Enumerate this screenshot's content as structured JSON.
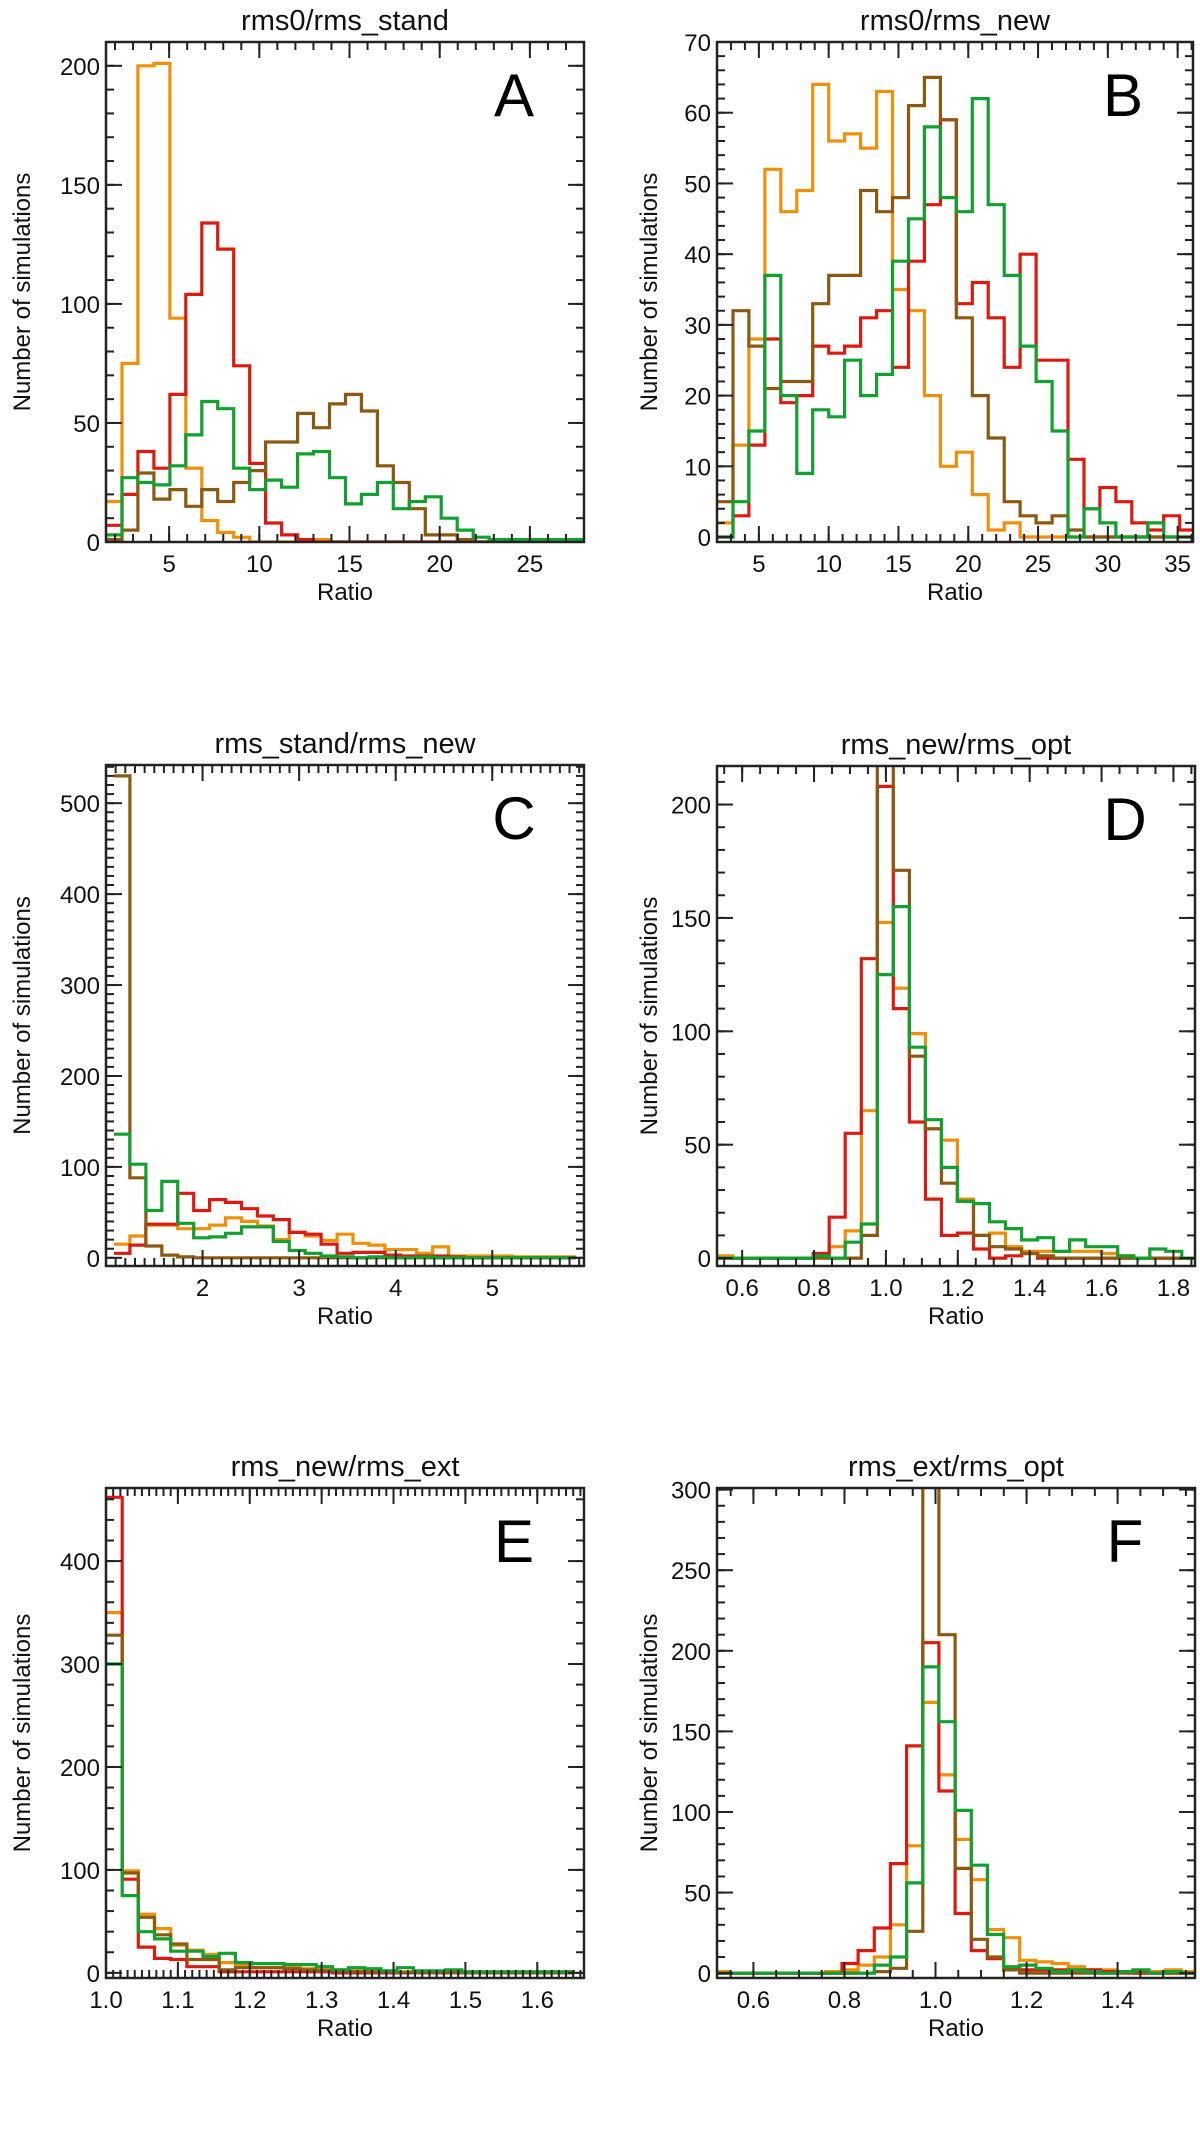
{
  "figure": {
    "series_colors": {
      "orange": "#F0900A",
      "red": "#DD1A10",
      "green": "#12A030",
      "brown": "#8B5A10"
    }
  },
  "chart_data": [
    {
      "id": "A",
      "type": "histogram",
      "title": "rms0/rms_stand",
      "panel_label": "A",
      "xlabel": "Ratio",
      "ylabel": "Number of simulations",
      "xlim": [
        1.5,
        28
      ],
      "ylim": [
        0,
        210
      ],
      "xticks": [
        5,
        10,
        15,
        20,
        25
      ],
      "xtick_labels": [
        "5",
        "10",
        "15",
        "20",
        "25"
      ],
      "xminor": 1,
      "yticks": [
        0,
        50,
        100,
        150,
        200
      ],
      "ytick_labels": [
        "0",
        "50",
        "100",
        "150",
        "200"
      ],
      "yminor": 10,
      "bin_start": 1.5,
      "bin_width": 0.885,
      "series": [
        {
          "name": "orange",
          "values": [
            17,
            75,
            200,
            201,
            94,
            31,
            9,
            4,
            2,
            0,
            0,
            0,
            0,
            1,
            0,
            0,
            0,
            0,
            0,
            0,
            0,
            0,
            0,
            0,
            0,
            0,
            0,
            0,
            0,
            0
          ]
        },
        {
          "name": "red",
          "values": [
            7,
            20,
            38,
            31,
            62,
            104,
            134,
            123,
            74,
            33,
            8,
            3,
            1,
            0,
            0,
            0,
            0,
            0,
            0,
            0,
            0,
            0,
            0,
            0,
            0,
            0,
            0,
            0,
            0,
            0
          ]
        },
        {
          "name": "brown",
          "values": [
            1,
            5,
            29,
            18,
            22,
            15,
            22,
            17,
            25,
            30,
            42,
            42,
            54,
            48,
            58,
            62,
            55,
            32,
            25,
            14,
            3,
            3,
            1,
            0,
            0,
            0,
            0,
            0,
            0,
            0
          ]
        },
        {
          "name": "green",
          "values": [
            3,
            27,
            25,
            24,
            32,
            45,
            59,
            56,
            31,
            22,
            26,
            23,
            37,
            38,
            27,
            16,
            20,
            25,
            14,
            17,
            19,
            10,
            5,
            2,
            1,
            1,
            1,
            1,
            1,
            1
          ]
        }
      ]
    },
    {
      "id": "B",
      "type": "histogram",
      "title": "rms0/rms_new",
      "panel_label": "B",
      "xlabel": "Ratio",
      "ylabel": "Number of simulations",
      "xlim": [
        2,
        36.1
      ],
      "ylim": [
        -0.7,
        70
      ],
      "xticks": [
        5,
        10,
        15,
        20,
        25,
        30,
        35
      ],
      "xtick_labels": [
        "5",
        "10",
        "15",
        "20",
        "25",
        "30",
        "35"
      ],
      "xminor": 1,
      "yticks": [
        0,
        10,
        20,
        30,
        40,
        50,
        60,
        70
      ],
      "ytick_labels": [
        "0",
        "10",
        "20",
        "30",
        "40",
        "50",
        "60",
        "70"
      ],
      "yminor": 2,
      "bin_start": 2.0,
      "bin_width": 1.143,
      "series": [
        {
          "name": "orange",
          "values": [
            2,
            13,
            28,
            52,
            46,
            49,
            64,
            56,
            57,
            55,
            63,
            35,
            32,
            20,
            10,
            12,
            6,
            1,
            2,
            0,
            0,
            0,
            0,
            0,
            0,
            0,
            0,
            0,
            0,
            0
          ]
        },
        {
          "name": "red",
          "values": [
            0,
            3,
            13,
            28,
            19,
            20,
            27,
            26,
            27,
            31,
            32,
            24,
            39,
            47,
            59,
            33,
            36,
            31,
            24,
            40,
            25,
            25,
            11,
            4,
            7,
            5,
            2,
            1,
            3,
            1
          ]
        },
        {
          "name": "brown",
          "values": [
            5,
            32,
            27,
            21,
            22,
            22,
            33,
            37,
            37,
            49,
            46,
            48,
            61,
            65,
            59,
            31,
            20,
            14,
            5,
            3,
            2,
            3,
            1,
            0,
            0,
            0,
            0,
            0,
            0,
            0
          ]
        },
        {
          "name": "green",
          "values": [
            0,
            5,
            15,
            37,
            20,
            9,
            18,
            17,
            25,
            20,
            23,
            39,
            45,
            58,
            48,
            46,
            62,
            47,
            37,
            27,
            22,
            15,
            0,
            4,
            2,
            0,
            0,
            2,
            0,
            0
          ]
        }
      ]
    },
    {
      "id": "C",
      "type": "histogram",
      "title": "rms_stand/rms_new",
      "panel_label": "C",
      "xlabel": "Ratio",
      "ylabel": "Number of simulations",
      "xlim": [
        1.0,
        5.95
      ],
      "ylim": [
        -9,
        542
      ],
      "xticks": [
        2,
        3,
        4,
        5
      ],
      "xtick_labels": [
        "2",
        "3",
        "4",
        "5"
      ],
      "xminor": 0.1,
      "yticks": [
        0,
        100,
        200,
        300,
        400,
        500
      ],
      "ytick_labels": [
        "0",
        "100",
        "200",
        "300",
        "400",
        "500"
      ],
      "yminor": 10,
      "bin_start": 1.083,
      "bin_width": 0.165,
      "series": [
        {
          "name": "orange",
          "values": [
            15,
            24,
            36,
            36,
            32,
            32,
            36,
            44,
            40,
            35,
            20,
            28,
            24,
            19,
            26,
            16,
            14,
            9,
            9,
            5,
            12,
            2,
            2,
            2,
            2,
            1,
            1,
            1,
            1
          ]
        },
        {
          "name": "red",
          "values": [
            5,
            14,
            37,
            37,
            71,
            52,
            64,
            61,
            54,
            46,
            42,
            28,
            26,
            15,
            5,
            6,
            6,
            3,
            2,
            2,
            2,
            1,
            0,
            0,
            0,
            0,
            0,
            0,
            0
          ]
        },
        {
          "name": "brown",
          "values": [
            530,
            88,
            13,
            3,
            1,
            0,
            0,
            0,
            0,
            0,
            0,
            0,
            0,
            0,
            0,
            0,
            0,
            0,
            0,
            0,
            0,
            0,
            0,
            0,
            0,
            0,
            0,
            0,
            0
          ]
        },
        {
          "name": "green",
          "values": [
            136,
            103,
            52,
            84,
            38,
            22,
            23,
            27,
            34,
            34,
            18,
            8,
            5,
            2,
            1,
            0,
            1,
            0,
            0,
            1,
            0,
            0,
            0,
            0,
            0,
            0,
            0,
            0,
            0
          ]
        }
      ]
    },
    {
      "id": "D",
      "type": "histogram",
      "title": "rms_new/rms_opt",
      "panel_label": "D",
      "xlabel": "Ratio",
      "ylabel": "Number of simulations",
      "xlim": [
        0.53,
        1.86
      ],
      "ylim": [
        -3.5,
        217
      ],
      "xticks": [
        0.6,
        0.8,
        1.0,
        1.2,
        1.4,
        1.6,
        1.8
      ],
      "xtick_labels": [
        "0.6",
        "0.8",
        "1.0",
        "1.2",
        "1.4",
        "1.6",
        "1.8"
      ],
      "xminor": 0.05,
      "yticks": [
        0,
        50,
        100,
        150,
        200
      ],
      "ytick_labels": [
        "0",
        "50",
        "100",
        "150",
        "200"
      ],
      "yminor": 10,
      "bin_start": 0.53,
      "bin_width": 0.0446,
      "series": [
        {
          "name": "orange",
          "values": [
            1,
            0,
            0,
            0,
            0,
            0,
            1,
            5,
            12,
            65,
            148,
            119,
            99,
            57,
            52,
            26,
            10,
            11,
            5,
            3,
            3,
            3,
            3,
            3,
            2,
            1,
            0,
            0,
            0,
            0
          ]
        },
        {
          "name": "red",
          "values": [
            0,
            0,
            0,
            0,
            0,
            0,
            2,
            18,
            55,
            132,
            208,
            110,
            60,
            26,
            10,
            11,
            4,
            0,
            1,
            2,
            0,
            0,
            0,
            0,
            0,
            0,
            0,
            0,
            0,
            0
          ]
        },
        {
          "name": "brown",
          "values": [
            0,
            0,
            0,
            0,
            0,
            0,
            0,
            0,
            0,
            10,
            290,
            171,
            89,
            57,
            33,
            25,
            10,
            5,
            4,
            2,
            1,
            0,
            0,
            0,
            0,
            0,
            0,
            0,
            0,
            0
          ]
        },
        {
          "name": "green",
          "values": [
            0,
            0,
            0,
            0,
            0,
            0,
            1,
            0,
            7,
            15,
            125,
            155,
            93,
            61,
            40,
            25,
            24,
            16,
            13,
            8,
            9,
            3,
            8,
            5,
            5,
            1,
            0,
            4,
            3,
            0
          ]
        }
      ]
    },
    {
      "id": "E",
      "type": "histogram",
      "title": "rms_new/rms_ext",
      "panel_label": "E",
      "xlabel": "Ratio",
      "ylabel": "Number of simulations",
      "xlim": [
        1.0,
        1.665
      ],
      "ylim": [
        -5,
        471
      ],
      "xticks": [
        1.0,
        1.1,
        1.2,
        1.3,
        1.4,
        1.5,
        1.6
      ],
      "xtick_labels": [
        "1.0",
        "1.1",
        "1.2",
        "1.3",
        "1.4",
        "1.5",
        "1.6"
      ],
      "xminor": 0.01,
      "yticks": [
        0,
        100,
        200,
        300,
        400
      ],
      "ytick_labels": [
        "0",
        "100",
        "200",
        "300",
        "400"
      ],
      "yminor": 20,
      "bin_start": 1.0,
      "bin_width": 0.0225,
      "series": [
        {
          "name": "orange",
          "values": [
            350,
            99,
            57,
            43,
            27,
            22,
            18,
            10,
            8,
            5,
            5,
            5,
            4,
            4,
            3,
            2,
            2,
            1,
            1,
            1,
            1,
            1,
            1,
            1,
            1,
            1,
            1,
            1,
            1
          ]
        },
        {
          "name": "red",
          "values": [
            462,
            91,
            25,
            14,
            13,
            6,
            6,
            1,
            1,
            1,
            1,
            1,
            1,
            1,
            0,
            0,
            0,
            0,
            0,
            0,
            0,
            0,
            0,
            0,
            0,
            0,
            0,
            0,
            0
          ]
        },
        {
          "name": "brown",
          "values": [
            328,
            97,
            54,
            37,
            28,
            13,
            13,
            3,
            5,
            5,
            5,
            4,
            3,
            2,
            2,
            1,
            1,
            1,
            0,
            0,
            0,
            0,
            0,
            0,
            0,
            0,
            0,
            0,
            0
          ]
        },
        {
          "name": "green",
          "values": [
            300,
            75,
            40,
            33,
            21,
            21,
            16,
            19,
            10,
            9,
            9,
            8,
            8,
            6,
            3,
            5,
            4,
            2,
            5,
            2,
            2,
            3,
            1,
            1,
            1,
            1,
            1,
            1,
            1
          ]
        }
      ]
    },
    {
      "id": "F",
      "type": "histogram",
      "title": "rms_ext/rms_opt",
      "panel_label": "F",
      "xlabel": "Ratio",
      "ylabel": "Number of simulations",
      "xlim": [
        0.52,
        1.57
      ],
      "ylim": [
        -3,
        301
      ],
      "xticks": [
        0.6,
        0.8,
        1.0,
        1.2,
        1.4
      ],
      "xtick_labels": [
        "0.6",
        "0.8",
        "1.0",
        "1.2",
        "1.4"
      ],
      "xminor": 0.05,
      "yticks": [
        0,
        50,
        100,
        150,
        200,
        250,
        300
      ],
      "ytick_labels": [
        "0",
        "50",
        "100",
        "150",
        "200",
        "250",
        "300"
      ],
      "yminor": 10,
      "bin_start": 0.5105,
      "bin_width": 0.0355,
      "series": [
        {
          "name": "orange",
          "values": [
            1,
            0,
            0,
            0,
            0,
            0,
            0,
            1,
            2,
            5,
            10,
            30,
            79,
            168,
            123,
            83,
            58,
            27,
            22,
            8,
            7,
            6,
            4,
            2,
            2,
            1,
            1,
            1,
            2,
            1,
            1
          ]
        },
        {
          "name": "red",
          "values": [
            0,
            0,
            0,
            0,
            0,
            0,
            0,
            0,
            6,
            14,
            28,
            68,
            141,
            205,
            113,
            37,
            14,
            9,
            3,
            2,
            2,
            2,
            2,
            2,
            1,
            1,
            0,
            0,
            0,
            0,
            0
          ]
        },
        {
          "name": "brown",
          "values": [
            0,
            0,
            0,
            0,
            0,
            0,
            0,
            0,
            0,
            0,
            1,
            3,
            26,
            320,
            210,
            65,
            21,
            10,
            2,
            0,
            0,
            0,
            0,
            0,
            0,
            0,
            0,
            0,
            0,
            0,
            0
          ]
        },
        {
          "name": "green",
          "values": [
            0,
            0,
            0,
            0,
            0,
            0,
            0,
            0,
            0,
            0,
            5,
            10,
            56,
            190,
            156,
            101,
            67,
            24,
            4,
            5,
            3,
            1,
            2,
            1,
            0,
            1,
            2,
            0,
            1,
            0,
            1
          ]
        }
      ]
    }
  ]
}
